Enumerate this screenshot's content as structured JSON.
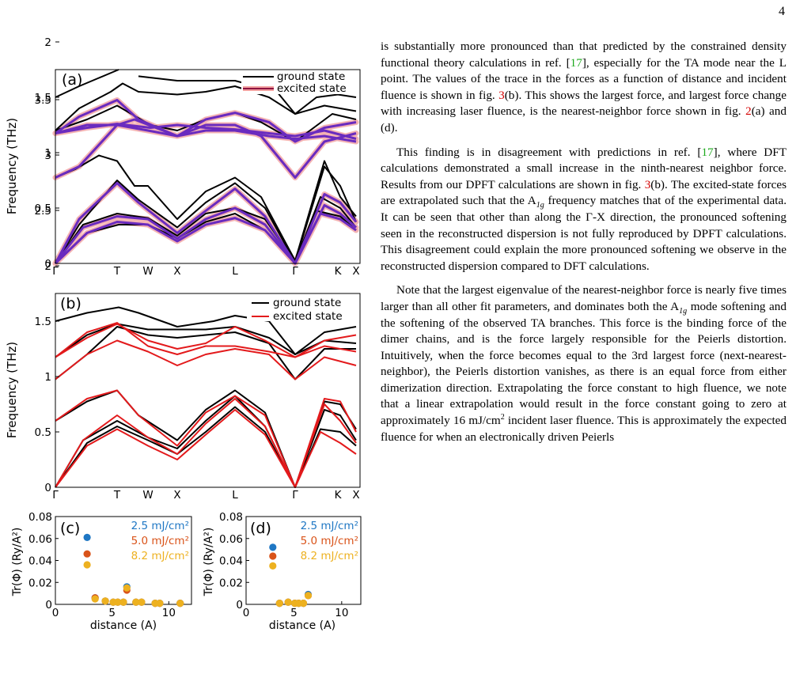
{
  "page_number": "4",
  "figure": {
    "panel_a": {
      "label": "(a)",
      "ylabel": "Frequency (THz)",
      "yticks": [
        "0",
        "0.5",
        "1",
        "1.5",
        "2",
        "2.5",
        "3",
        "3.5"
      ],
      "xticks": [
        "Γ",
        "T",
        "W",
        "X",
        "L",
        "Γ",
        "K",
        "X"
      ],
      "legend": [
        "ground state",
        "excited state"
      ]
    },
    "panel_b": {
      "label": "(b)",
      "ylabel": "Frequency (THz)",
      "yticks": [
        "0",
        "0.5",
        "1",
        "1.5",
        "2",
        "2.5",
        "3",
        "3.5"
      ],
      "xticks": [
        "Γ",
        "T",
        "W",
        "X",
        "L",
        "Γ",
        "K",
        "X"
      ],
      "legend": [
        "ground state",
        "excited state"
      ]
    },
    "panel_c": {
      "label": "(c)",
      "xlabel": "distance (A)",
      "ylabel": "Tr(Φ)  (Ry/A²)",
      "yticks": [
        "0",
        "0.02",
        "0.04",
        "0.06",
        "0.08"
      ],
      "xticks": [
        "0",
        "5",
        "10"
      ]
    },
    "panel_d": {
      "label": "(d)",
      "xlabel": "distance (A)",
      "ylabel": "Tr(Φ)  (Ry/A²)",
      "yticks": [
        "0",
        "0.02",
        "0.04",
        "0.06",
        "0.08"
      ],
      "xticks": [
        "0",
        "5",
        "10"
      ]
    },
    "fluence_legend": [
      "2.5 mJ/cm²",
      "5.0 mJ/cm²",
      "8.2 mJ/cm²"
    ]
  },
  "chart_data": [
    {
      "type": "scatter",
      "panel": "(c)",
      "xlabel": "distance (A)",
      "ylabel": "Tr(Φ) (Ry/A²)",
      "xlim": [
        0,
        12
      ],
      "ylim": [
        0,
        0.08
      ],
      "series": [
        {
          "name": "2.5 mJ/cm²",
          "color": "#1f77c4",
          "x": [
            2.8,
            3.5,
            4.4,
            5.1,
            5.5,
            6.0,
            6.3,
            7.1,
            7.6,
            8.8,
            9.2,
            11.0
          ],
          "y": [
            0.061,
            0.006,
            0.003,
            0.002,
            0.002,
            0.002,
            0.016,
            0.002,
            0.002,
            0.001,
            0.001,
            0.001
          ]
        },
        {
          "name": "5.0 mJ/cm²",
          "color": "#d95319",
          "x": [
            2.8,
            3.5,
            4.4,
            5.1,
            5.5,
            6.0,
            6.3,
            7.1,
            7.6,
            8.8,
            9.2,
            11.0
          ],
          "y": [
            0.046,
            0.006,
            0.003,
            0.002,
            0.002,
            0.002,
            0.013,
            0.002,
            0.002,
            0.001,
            0.001,
            0.001
          ]
        },
        {
          "name": "8.2 mJ/cm²",
          "color": "#edb120",
          "x": [
            2.8,
            3.5,
            4.4,
            5.1,
            5.5,
            6.0,
            6.3,
            7.1,
            7.6,
            8.8,
            9.2,
            11.0
          ],
          "y": [
            0.036,
            0.005,
            0.003,
            0.002,
            0.002,
            0.002,
            0.015,
            0.002,
            0.002,
            0.001,
            0.001,
            0.001
          ]
        }
      ]
    },
    {
      "type": "scatter",
      "panel": "(d)",
      "xlabel": "distance (A)",
      "ylabel": "Tr(Φ) (Ry/A²)",
      "xlim": [
        0,
        12
      ],
      "ylim": [
        0,
        0.08
      ],
      "series": [
        {
          "name": "2.5 mJ/cm²",
          "color": "#1f77c4",
          "x": [
            2.8,
            3.5,
            4.4,
            5.1,
            5.5,
            6.0,
            6.5
          ],
          "y": [
            0.052,
            0.001,
            0.002,
            0.001,
            0.001,
            0.001,
            0.009
          ]
        },
        {
          "name": "5.0 mJ/cm²",
          "color": "#d95319",
          "x": [
            2.8,
            3.5,
            4.4,
            5.1,
            5.5,
            6.0,
            6.5
          ],
          "y": [
            0.044,
            0.001,
            0.002,
            0.001,
            0.001,
            0.001,
            0.008
          ]
        },
        {
          "name": "8.2 mJ/cm²",
          "color": "#edb120",
          "x": [
            2.8,
            3.5,
            4.4,
            5.1,
            5.5,
            6.0,
            6.5
          ],
          "y": [
            0.035,
            0.001,
            0.002,
            0.001,
            0.001,
            0.001,
            0.008
          ]
        }
      ]
    }
  ],
  "body": {
    "p1": {
      "t1": "is substantially more pronounced than that predicted by the constrained density functional theory calculations in ref. [",
      "r1": "17",
      "t2": "], especially for the TA mode near the L point. The values of the trace in the forces as a function of distance and incident fluence is shown in fig. ",
      "r2": "3",
      "t3": "(b). This shows the largest force, and largest force change with increasing laser fluence, is the nearest-neighbor force shown in fig. ",
      "r3": "2",
      "t4": "(a) and (d)."
    },
    "p2": {
      "t1": "This finding is in disagreement with predictions in ref. [",
      "r1": "17",
      "t2": "], where DFT calculations demonstrated a small increase in the ninth-nearest neighbor force. Results from our DPFT calculations are shown in fig. ",
      "r2": "3",
      "t3": "(b). The excited-state forces are extrapolated such that the A",
      "sub1": "1g",
      "t4": " frequency matches that of the experimental data. It can be seen that other than along the Γ-X direction, the pronounced softening seen in the reconstructed dispersion is not fully reproduced by DPFT calculations. This disagreement could explain the more pronounced softening we observe in the reconstructed dispersion compared to DFT calculations."
    },
    "p3": {
      "t1": "Note that the largest eigenvalue of the nearest-neighbor force is nearly five times larger than all other fit parameters, and dominates both the A",
      "sub1": "1g",
      "t2": " mode softening and the softening of the observed TA branches. This force is the binding force of the dimer chains, and is the force largely responsible for the Peierls distortion. Intuitively, when the force becomes equal to the 3rd largest force (next-nearest-neighbor), the Peierls distortion vanishes, as there is an equal force from either dimerization direction. Extrapolating the force constant to high fluence, we note that a linear extrapolation would result in the force constant going to zero at approximately 16 mJ/cm",
      "sup1": "2",
      "t3": " incident laser fluence. This is approximately the expected fluence for when an electronically driven Peierls"
    }
  }
}
